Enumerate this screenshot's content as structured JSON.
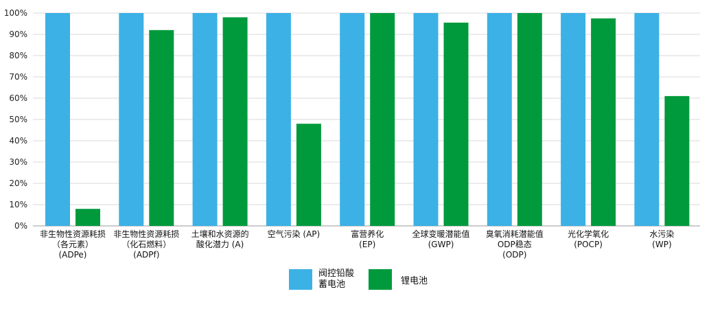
{
  "chart_data": {
    "type": "bar",
    "title": "",
    "xlabel": "",
    "ylabel": "",
    "ylim": [
      0,
      100
    ],
    "y_ticks": [
      "0%",
      "10%",
      "20%",
      "30%",
      "40%",
      "50%",
      "60%",
      "70%",
      "80%",
      "90%",
      "100%"
    ],
    "grid": true,
    "legend_position": "bottom-center",
    "categories": [
      [
        "非生物性资源耗损",
        "（各元素）",
        "(ADPe)"
      ],
      [
        "非生物性资源耗损",
        "（化石燃料）",
        "(ADPf)"
      ],
      [
        "土壤和水资源的",
        "酸化潜力 (A)"
      ],
      [
        "空气污染 (AP)"
      ],
      [
        "富营养化",
        "(EP)"
      ],
      [
        "全球变暖潜能值",
        "(GWP)"
      ],
      [
        "臭氧消耗潜能值",
        "ODP稳态",
        "(ODP)"
      ],
      [
        "光化学氧化",
        "(POCP)"
      ],
      [
        "水污染",
        "(WP)"
      ]
    ],
    "series": [
      {
        "name": [
          "阀控铅酸",
          "蓄电池"
        ],
        "color": "#3cb1e6",
        "values": [
          100,
          100,
          100,
          100,
          100,
          100,
          100,
          100,
          100
        ]
      },
      {
        "name": [
          "锂电池"
        ],
        "color": "#009a3d",
        "values": [
          8,
          92,
          98,
          48,
          100,
          95.5,
          100,
          97.5,
          61
        ]
      }
    ]
  }
}
